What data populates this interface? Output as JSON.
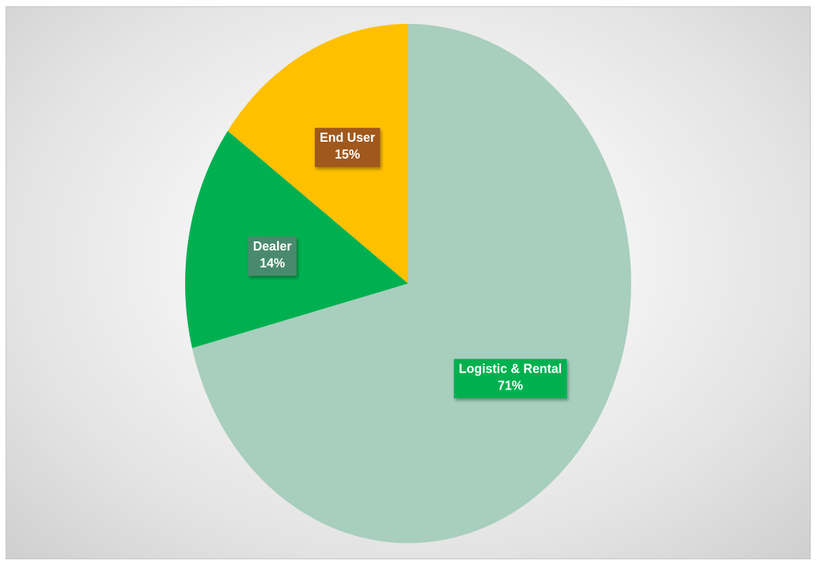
{
  "chart_data": {
    "type": "pie",
    "title": "",
    "start_angle_deg": 0,
    "direction": "clockwise",
    "legend": "none",
    "slices": [
      {
        "name": "Logistic & Rental",
        "value": 71,
        "label_value": "71%",
        "color": "#a8cebe",
        "label_bg": "#00b050"
      },
      {
        "name": "Dealer",
        "value": 14,
        "label_value": "14%",
        "color": "#00b050",
        "label_bg": "#4a8a6e"
      },
      {
        "name": "End User",
        "value": 15,
        "label_value": "15%",
        "color": "#ffc000",
        "label_bg": "#a0581a"
      }
    ]
  }
}
